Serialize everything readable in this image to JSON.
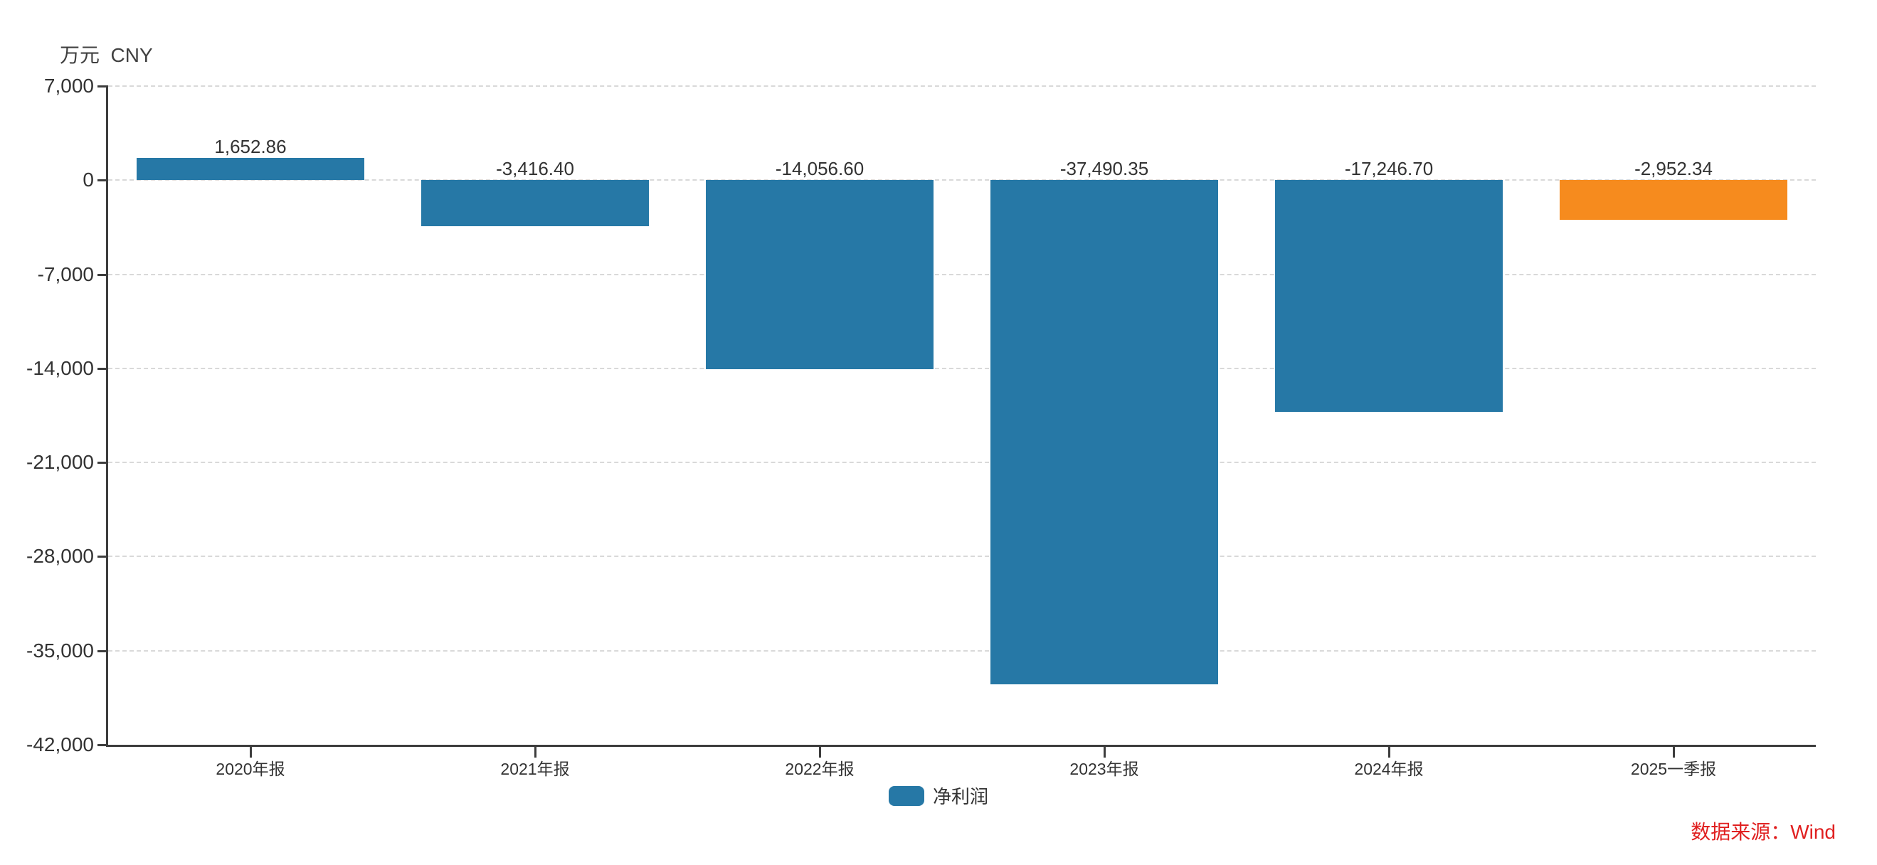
{
  "chart": {
    "unit_label": "万元  CNY",
    "legend": {
      "label": "净利润",
      "swatch_color": "#2678a6"
    },
    "source": "数据来源：Wind",
    "colors": {
      "bar_default": "#2678a6",
      "bar_highlight": "#f68b1e",
      "axis": "#3d3d3d",
      "grid": "#d9d9d9",
      "text": "#333333",
      "source_text": "#e02020"
    }
  },
  "chart_data": {
    "type": "bar",
    "title": "",
    "series_name": "净利润",
    "categories": [
      "2020年报",
      "2021年报",
      "2022年报",
      "2023年报",
      "2024年报",
      "2025一季报"
    ],
    "values": [
      1652.86,
      -3416.4,
      -14056.6,
      -37490.35,
      -17246.7,
      -2952.34
    ],
    "value_labels": [
      "1,652.86",
      "-3,416.40",
      "-14,056.60",
      "-37,490.35",
      "-17,246.70",
      "-2,952.34"
    ],
    "bar_colors": [
      "#2678a6",
      "#2678a6",
      "#2678a6",
      "#2678a6",
      "#2678a6",
      "#f68b1e"
    ],
    "xlabel": "",
    "ylabel": "万元 CNY",
    "ylim": [
      -42000,
      7000
    ],
    "yticks": [
      7000,
      0,
      -7000,
      -14000,
      -21000,
      -28000,
      -35000,
      -42000
    ],
    "ytick_labels": [
      "7,000",
      "0",
      "-7,000",
      "-14,000",
      "-21,000",
      "-28,000",
      "-35,000",
      "-42,000"
    ],
    "grid": true,
    "grid_style": "dashed",
    "legend_position": "bottom",
    "bar_label_position": "above"
  }
}
